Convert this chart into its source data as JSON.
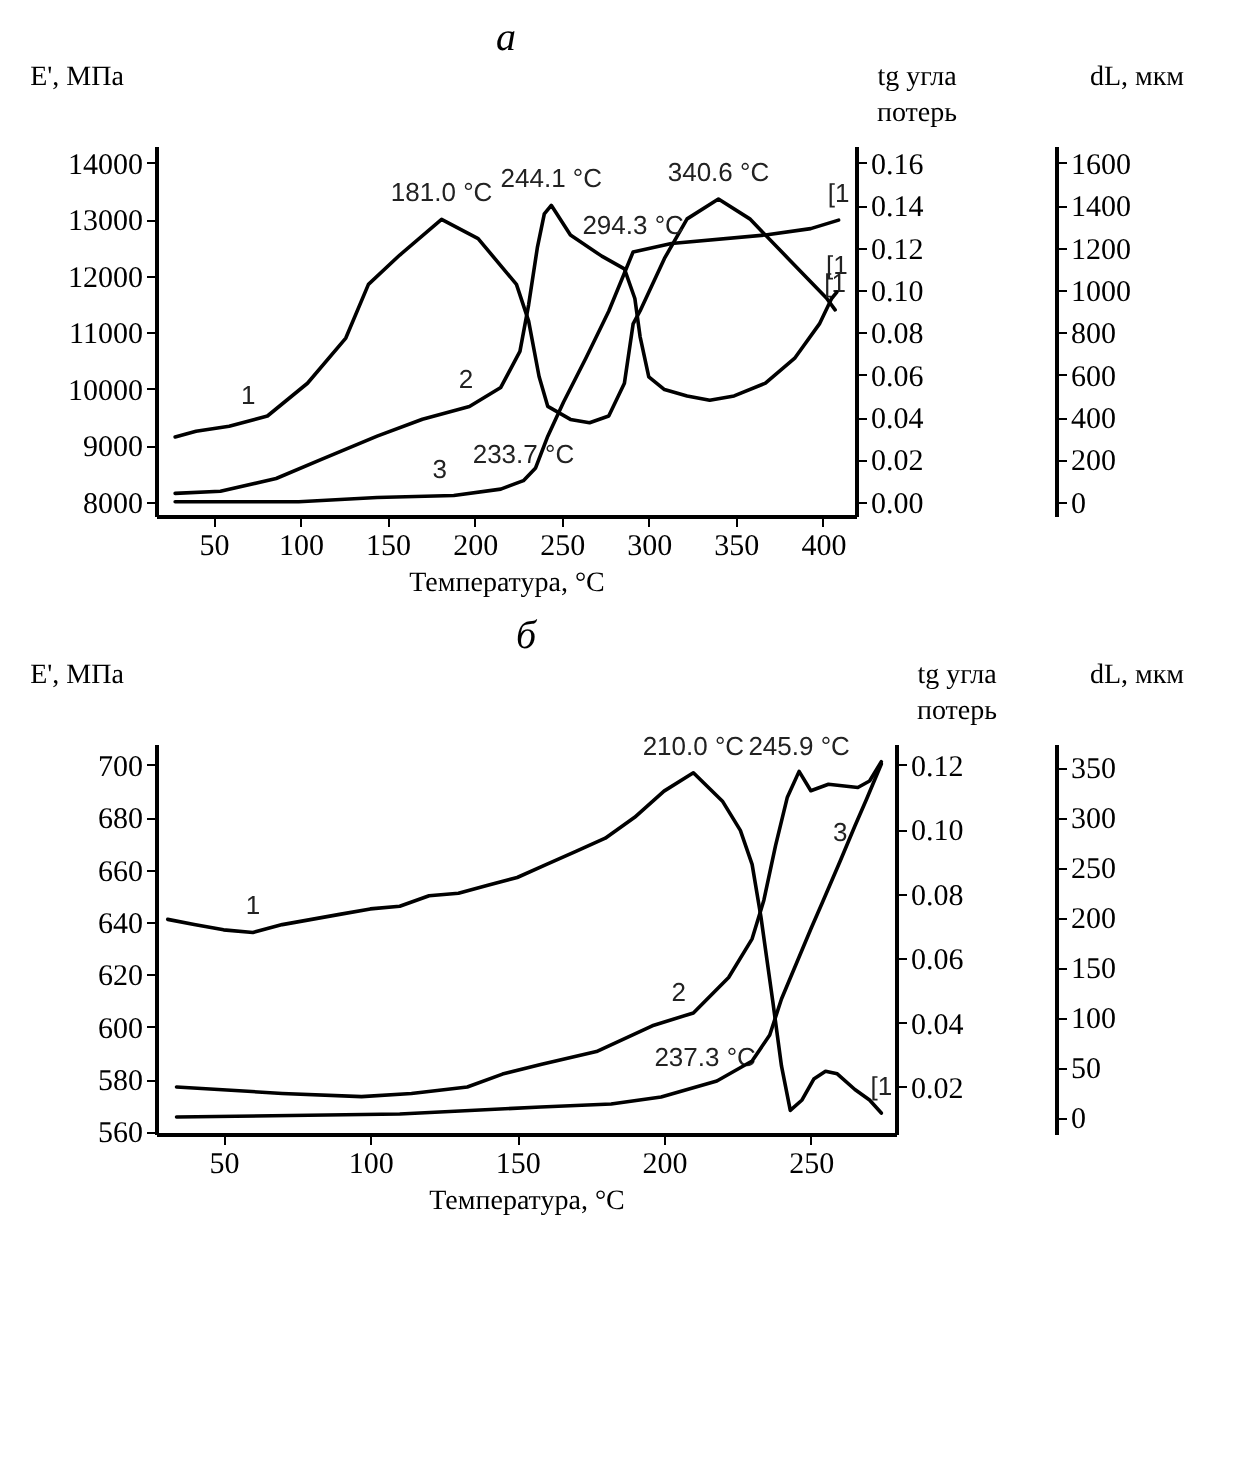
{
  "chart_data": [
    {
      "type": "line",
      "title": "а",
      "xlabel": "Температура, °C",
      "ylabel": "E', МПа",
      "y2label": "tg угла потерь",
      "y3label": "dL, мкм",
      "xlim": [
        17,
        419
      ],
      "xticks": [
        50,
        100,
        150,
        200,
        250,
        300,
        350,
        400
      ],
      "ylim": [
        7750,
        14300
      ],
      "yticks": [
        8000,
        9000,
        10000,
        11000,
        12000,
        13000,
        14000
      ],
      "y2lim": [
        -0.0067,
        0.168
      ],
      "y2ticks": [
        {
          "value": 0,
          "label": "0.00"
        },
        {
          "value": 0.02,
          "label": "0.02"
        },
        {
          "value": 0.04,
          "label": "0.04"
        },
        {
          "value": 0.06,
          "label": "0.06"
        },
        {
          "value": 0.08,
          "label": "0.08"
        },
        {
          "value": 0.1,
          "label": "0.10"
        },
        {
          "value": 0.12,
          "label": "0.12"
        },
        {
          "value": 0.14,
          "label": "0.14"
        },
        {
          "value": 0.16,
          "label": "0.16"
        }
      ],
      "y3lim": [
        -67,
        1680
      ],
      "y3ticks": [
        0,
        200,
        400,
        600,
        800,
        1000,
        1200,
        1400,
        1600
      ],
      "series": [
        {
          "color": "#000000",
          "x": [
            28,
            40,
            59,
            81,
            104,
            126,
            139,
            157,
            181,
            202,
            224,
            231,
            237,
            242,
            255,
            266,
            277,
            286,
            291,
            295,
            309,
            322,
            340,
            358,
            380,
            402,
            407
          ],
          "values": [
            9150,
            9250,
            9340,
            9520,
            10100,
            10900,
            11850,
            12370,
            13000,
            12660,
            11850,
            11200,
            10220,
            9690,
            9460,
            9400,
            9520,
            10100,
            11150,
            11380,
            12310,
            13010,
            13360,
            13010,
            12310,
            11610,
            11400
          ]
        },
        {
          "color": "#000000",
          "axis": "y2",
          "x": [
            28,
            54,
            86,
            112,
            144,
            170,
            197,
            215,
            226,
            231,
            236,
            240,
            244,
            255,
            273,
            286,
            292,
            295,
            300,
            309,
            322,
            335,
            349,
            367,
            384,
            398,
            405,
            408
          ],
          "values": [
            0.004,
            0.005,
            0.011,
            0.02,
            0.031,
            0.039,
            0.045,
            0.054,
            0.071,
            0.093,
            0.12,
            0.136,
            0.14,
            0.126,
            0.116,
            0.11,
            0.096,
            0.078,
            0.059,
            0.053,
            0.05,
            0.048,
            0.05,
            0.056,
            0.068,
            0.084,
            0.096,
            0.099
          ]
        },
        {
          "color": "#000000",
          "axis": "y3",
          "x": [
            28,
            99,
            144,
            188,
            215,
            228,
            235,
            242,
            251,
            264,
            277,
            291,
            313,
            367,
            393,
            409
          ],
          "values": [
            0,
            0,
            20,
            30,
            60,
            100,
            160,
            310,
            470,
            680,
            900,
            1180,
            1220,
            1260,
            1290,
            1330
          ]
        }
      ],
      "annotations": [
        {
          "text": "181.0 °C",
          "x": 181,
          "y": 13000
        },
        {
          "text": "244.1 °C",
          "x": 244,
          "y": 13250
        },
        {
          "text": "294.3 °C",
          "x": 291,
          "y": 12420
        },
        {
          "text": "340.6 °C",
          "x": 340,
          "y": 13360
        },
        {
          "text": "233.7 °C",
          "x": 228,
          "y": 8375
        },
        {
          "text": "1",
          "x": 70,
          "y": 9420
        },
        {
          "text": "2",
          "x": 195,
          "y": 9690
        },
        {
          "text": "3",
          "x": 180,
          "y": 8105
        },
        {
          "text": "[1",
          "x": 409,
          "y": 12990
        },
        {
          "text": "[1",
          "x": 408,
          "y": 11710
        },
        {
          "text": "[1",
          "x": 407,
          "y": 11400
        }
      ]
    },
    {
      "type": "line",
      "title": "б",
      "xlabel": "Температура, °C",
      "ylabel": "E', МПа",
      "y2label": "tg угла потерь",
      "y3label": "dL, мкм",
      "xlim": [
        27,
        279
      ],
      "xticks": [
        50,
        100,
        150,
        200,
        250
      ],
      "ylim": [
        559,
        708
      ],
      "yticks": [
        560,
        580,
        600,
        620,
        640,
        660,
        680,
        700
      ],
      "y2lim": [
        0.0054,
        0.1265
      ],
      "y2ticks": [
        {
          "value": 0.02,
          "label": "0.02"
        },
        {
          "value": 0.04,
          "label": "0.04"
        },
        {
          "value": 0.06,
          "label": "0.06"
        },
        {
          "value": 0.08,
          "label": "0.08"
        },
        {
          "value": 0.1,
          "label": "0.10"
        },
        {
          "value": 0.12,
          "label": "0.12"
        }
      ],
      "y3lim": [
        -17,
        373
      ],
      "y3ticks": [
        0,
        50,
        100,
        150,
        200,
        250,
        300,
        350
      ],
      "series": [
        {
          "color": "#000000",
          "x": [
            31,
            40,
            50,
            60,
            70,
            80,
            90,
            100,
            110,
            120,
            130,
            140,
            150,
            160,
            170,
            180,
            190,
            200,
            210,
            220,
            226,
            230,
            233,
            237,
            240,
            243,
            247,
            251,
            255,
            259,
            265,
            270,
            274
          ],
          "values": [
            641,
            639,
            637,
            636,
            639,
            641,
            643,
            645,
            646,
            650,
            651,
            654,
            657,
            662,
            667,
            672,
            680,
            690,
            697,
            686,
            675,
            662,
            642,
            610,
            585,
            568,
            572,
            580,
            583,
            582,
            576,
            572,
            567
          ]
        },
        {
          "color": "#000000",
          "axis": "y2",
          "x": [
            34,
            70,
            97,
            114,
            133,
            145,
            158,
            177,
            196,
            210,
            222,
            230,
            234,
            238,
            242,
            246,
            250,
            256,
            266,
            270,
            274
          ],
          "values": [
            0.02,
            0.018,
            0.017,
            0.018,
            0.02,
            0.024,
            0.027,
            0.031,
            0.039,
            0.043,
            0.054,
            0.066,
            0.078,
            0.095,
            0.11,
            0.118,
            0.112,
            0.114,
            0.113,
            0.115,
            0.121
          ]
        },
        {
          "color": "#000000",
          "axis": "y3",
          "x": [
            34,
            110,
            158,
            182,
            199,
            218,
            230,
            236,
            240,
            245,
            250,
            254,
            260,
            265,
            269,
            274
          ],
          "values": [
            0,
            3,
            10,
            13,
            20,
            36,
            56,
            82,
            118,
            153,
            188,
            215,
            256,
            291,
            318,
            353
          ]
        }
      ],
      "annotations": [
        {
          "text": "210.0 °C",
          "x": 210,
          "y": 697
        },
        {
          "text": "245.9 °C",
          "x": 246,
          "y": 697
        },
        {
          "text": "237.3 °C",
          "x": 214,
          "y": 578
        },
        {
          "text": "1",
          "x": 60,
          "y": 636
        },
        {
          "text": "2",
          "x": 205,
          "y": 603
        },
        {
          "text": "3",
          "x": 260,
          "y": 664
        },
        {
          "text": "[1",
          "x": 274,
          "y": 567
        }
      ]
    }
  ]
}
